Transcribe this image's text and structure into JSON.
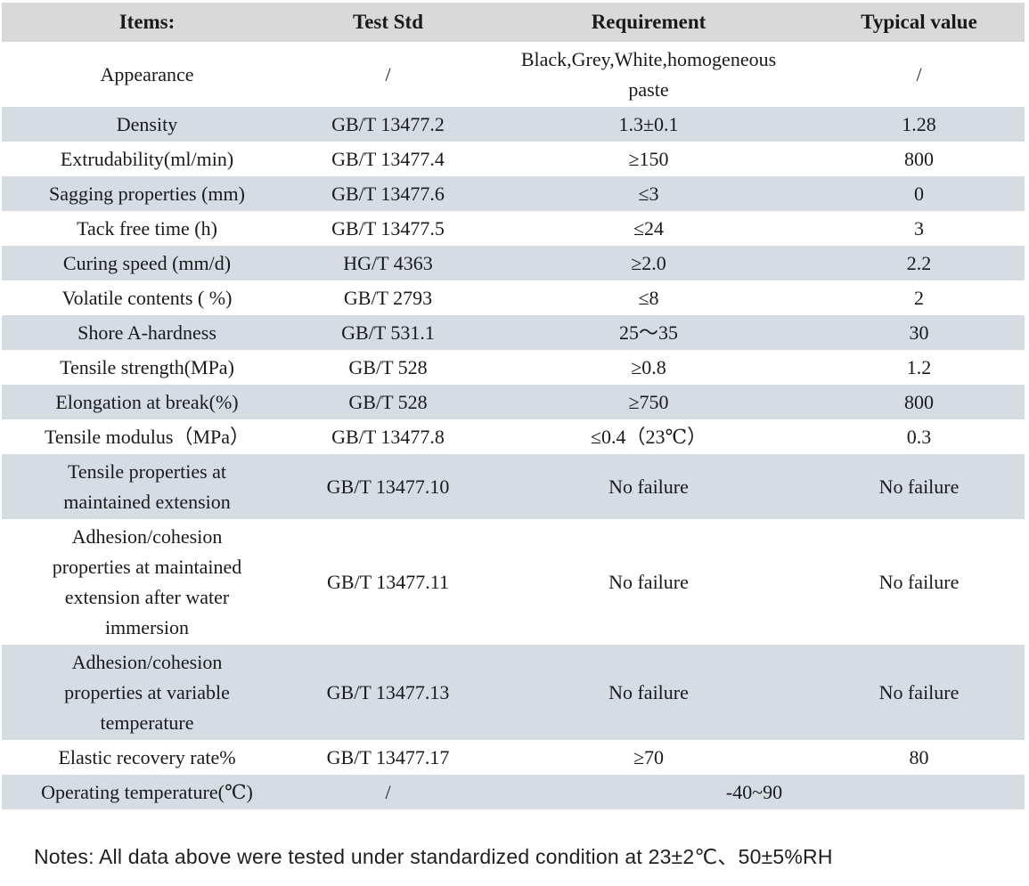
{
  "table": {
    "headers": [
      "Items:",
      "Test Std",
      "Requirement",
      "Typical value"
    ],
    "rows": [
      {
        "item": "Appearance",
        "std": "/",
        "req": "Black,Grey,White,homogeneous paste",
        "typ": "/",
        "shade": false
      },
      {
        "item": "Density",
        "std": "GB/T 13477.2",
        "req": "1.3±0.1",
        "typ": "1.28",
        "shade": true
      },
      {
        "item": "Extrudability(ml/min)",
        "std": "GB/T 13477.4",
        "req": "≥150",
        "typ": "800",
        "shade": false
      },
      {
        "item": "Sagging properties (mm)",
        "std": "GB/T 13477.6",
        "req": "≤3",
        "typ": "0",
        "shade": true
      },
      {
        "item": "Tack free time (h)",
        "std": "GB/T 13477.5",
        "req": "≤24",
        "typ": "3",
        "shade": false
      },
      {
        "item": "Curing speed (mm/d)",
        "std": "HG/T 4363",
        "req": "≥2.0",
        "typ": "2.2",
        "shade": true
      },
      {
        "item": "Volatile contents ( %)",
        "std": "GB/T 2793",
        "req": "≤8",
        "typ": "2",
        "shade": false
      },
      {
        "item": "Shore A-hardness",
        "std": "GB/T 531.1",
        "req": "25～35",
        "typ": "30",
        "shade": true
      },
      {
        "item": "Tensile strength(MPa)",
        "std": "GB/T 528",
        "req": "≥0.8",
        "typ": "1.2",
        "shade": false
      },
      {
        "item": "Elongation at break(%)",
        "std": "GB/T 528",
        "req": "≥750",
        "typ": "800",
        "shade": true
      },
      {
        "item": "Tensile modulus（MPa）",
        "std": "GB/T 13477.8",
        "req": "≤0.4（23℃）",
        "typ": "0.3",
        "shade": false
      },
      {
        "item": "Tensile properties at maintained extension",
        "std": "GB/T 13477.10",
        "req": "No failure",
        "typ": "No failure",
        "shade": true
      },
      {
        "item": "Adhesion/cohesion properties at maintained extension after water immersion",
        "std": "GB/T 13477.11",
        "req": "No failure",
        "typ": "No failure",
        "shade": false
      },
      {
        "item": "Adhesion/cohesion properties at variable temperature",
        "std": "GB/T 13477.13",
        "req": "No failure",
        "typ": "No failure",
        "shade": true
      },
      {
        "item": "Elastic recovery rate%",
        "std": "GB/T 13477.17",
        "req": "≥70",
        "typ": "80",
        "shade": false
      },
      {
        "item": "Operating temperature(℃)",
        "std": "/",
        "req": "-40~90",
        "typ": null,
        "shade": true
      }
    ]
  },
  "note": "Notes: All data above were tested under standardized condition at 23±2℃、50±5%RH",
  "colors": {
    "header_bg": "#d9d9d9",
    "row_shade": "#d6dce4",
    "text_color": "#1a1a1a",
    "note_text": "#1f1f1f"
  }
}
